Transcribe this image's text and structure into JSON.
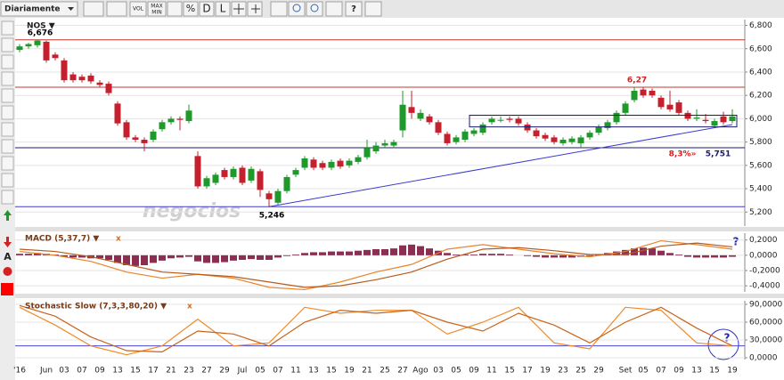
{
  "toolbar": {
    "period": "Diariamente",
    "vol": "VOL",
    "max": "MAX",
    "min": "MIN",
    "percent": "%",
    "d": "D",
    "l": "L",
    "help": "?"
  },
  "tools": {
    "text": "A"
  },
  "help": "?",
  "watermark": "negocios",
  "chart_data": [
    {
      "type": "candlestick",
      "title": "NOS ▼",
      "categories": [
        "'16",
        null,
        null,
        "Jun",
        null,
        "03",
        null,
        "07",
        null,
        "09",
        null,
        "13",
        null,
        "15",
        null,
        "17",
        null,
        "21",
        null,
        "23",
        null,
        "27",
        null,
        "29",
        null,
        "Jul",
        null,
        "05",
        null,
        "07",
        null,
        "11",
        null,
        "13",
        null,
        "15",
        null,
        "19",
        null,
        "21",
        null,
        "25",
        null,
        "27",
        null,
        "Ago",
        null,
        "03",
        null,
        "05",
        null,
        "09",
        null,
        "11",
        null,
        "15",
        null,
        "17",
        null,
        "19",
        null,
        "23",
        null,
        "25",
        null,
        "29",
        null,
        null,
        "Set",
        null,
        "05",
        null,
        "07",
        null,
        "09",
        null,
        "13",
        null,
        "15",
        null,
        "19"
      ],
      "open": [
        6.59,
        6.62,
        6.63,
        6.66,
        6.55,
        6.5,
        6.38,
        6.36,
        6.37,
        6.31,
        6.3,
        6.13,
        5.97,
        5.84,
        5.82,
        5.82,
        5.91,
        5.97,
        6.0,
        5.98,
        5.68,
        5.42,
        5.45,
        5.56,
        5.5,
        5.58,
        5.47,
        5.55,
        5.36,
        5.28,
        5.38,
        5.52,
        5.58,
        5.65,
        5.62,
        5.58,
        5.64,
        5.6,
        5.63,
        5.67,
        5.72,
        5.77,
        5.77,
        5.9,
        6.1,
        6.0,
        6.02,
        5.97,
        5.87,
        5.8,
        5.82,
        5.87,
        5.88,
        5.97,
        5.99,
        6.0,
        6.0,
        5.95,
        5.9,
        5.86,
        5.84,
        5.79,
        5.8,
        5.79,
        5.84,
        5.88,
        5.92,
        5.97,
        6.05,
        6.16,
        6.25,
        6.24,
        6.18,
        6.12,
        6.14,
        6.05,
        6.0,
        5.99,
        5.94,
        6.02,
        5.98
      ],
      "high": [
        6.64,
        6.65,
        6.676,
        6.67,
        6.57,
        6.52,
        6.4,
        6.38,
        6.39,
        6.33,
        6.32,
        6.15,
        5.99,
        5.86,
        5.84,
        5.91,
        5.99,
        6.02,
        6.02,
        6.12,
        5.72,
        5.51,
        5.54,
        5.58,
        5.59,
        5.6,
        5.59,
        5.57,
        5.38,
        5.4,
        5.52,
        5.58,
        5.68,
        5.67,
        5.64,
        5.65,
        5.66,
        5.66,
        5.69,
        5.82,
        5.8,
        5.82,
        5.82,
        6.24,
        6.24,
        6.08,
        6.04,
        5.99,
        5.89,
        5.86,
        5.91,
        5.92,
        5.97,
        6.02,
        6.02,
        6.02,
        6.02,
        5.97,
        5.92,
        5.88,
        5.86,
        5.84,
        5.85,
        5.86,
        5.9,
        5.95,
        5.99,
        6.07,
        6.15,
        6.27,
        6.27,
        6.26,
        6.2,
        6.24,
        6.16,
        6.07,
        6.08,
        6.04,
        6.0,
        6.06,
        6.08
      ],
      "low": [
        6.57,
        6.6,
        6.61,
        6.48,
        6.5,
        6.31,
        6.31,
        6.31,
        6.3,
        6.27,
        6.2,
        5.94,
        5.82,
        5.8,
        5.72,
        5.8,
        5.89,
        5.95,
        5.9,
        5.96,
        5.4,
        5.4,
        5.43,
        5.48,
        5.48,
        5.43,
        5.45,
        5.33,
        5.246,
        5.26,
        5.36,
        5.5,
        5.56,
        5.56,
        5.56,
        5.56,
        5.57,
        5.58,
        5.61,
        5.65,
        5.7,
        5.75,
        5.75,
        5.84,
        6.0,
        5.98,
        5.95,
        5.86,
        5.77,
        5.78,
        5.8,
        5.85,
        5.86,
        5.95,
        5.97,
        5.97,
        5.94,
        5.88,
        5.83,
        5.81,
        5.78,
        5.77,
        5.78,
        5.75,
        5.82,
        5.86,
        5.9,
        5.95,
        6.03,
        6.14,
        6.18,
        6.18,
        6.08,
        6.06,
        6.03,
        5.98,
        5.98,
        5.96,
        5.92,
        5.95,
        5.96
      ],
      "close": [
        6.62,
        6.64,
        6.67,
        6.5,
        6.52,
        6.33,
        6.33,
        6.33,
        6.32,
        6.29,
        6.22,
        5.96,
        5.84,
        5.82,
        5.79,
        5.89,
        5.97,
        6.0,
        5.99,
        6.07,
        5.42,
        5.49,
        5.52,
        5.5,
        5.57,
        5.45,
        5.57,
        5.39,
        5.31,
        5.38,
        5.5,
        5.56,
        5.66,
        5.58,
        5.58,
        5.63,
        5.59,
        5.64,
        5.67,
        5.75,
        5.77,
        5.79,
        5.8,
        6.12,
        6.05,
        6.05,
        5.97,
        5.88,
        5.79,
        5.84,
        5.89,
        5.9,
        5.95,
        6.0,
        5.99,
        5.99,
        5.96,
        5.9,
        5.85,
        5.83,
        5.8,
        5.82,
        5.83,
        5.84,
        5.88,
        5.93,
        5.97,
        6.05,
        6.13,
        6.24,
        6.2,
        6.2,
        6.1,
        6.08,
        6.05,
        6.0,
        6.01,
        5.98,
        5.98,
        5.97,
        6.02
      ],
      "up_color": "#1f9a2a",
      "down_color": "#c4202e",
      "ylim": [
        5.08,
        6.85
      ],
      "yticks": [
        {
          "value": 5.2,
          "label": "5,200"
        },
        {
          "value": 5.4,
          "label": "5,400"
        },
        {
          "value": 5.6,
          "label": "5,600"
        },
        {
          "value": 5.8,
          "label": "5,800"
        },
        {
          "value": 6.0,
          "label": "6,000"
        },
        {
          "value": 6.2,
          "label": "6,200"
        },
        {
          "value": 6.4,
          "label": "6,400"
        },
        {
          "value": 6.6,
          "label": "6,600"
        },
        {
          "value": 6.8,
          "label": "6,800"
        }
      ],
      "grid": true,
      "levels": [
        {
          "value": 6.676,
          "color": "#c0392b"
        },
        {
          "value": 6.27,
          "color": "#c0392b"
        },
        {
          "value": 5.751,
          "color": "#1a1a6e",
          "label": "5,751"
        },
        {
          "value": 5.246,
          "color": "#3b3bd0"
        }
      ],
      "distance_label": "8,3%»",
      "annotations": [
        {
          "label": "6,676",
          "value": 6.676,
          "at": "high",
          "color": "#000000"
        },
        {
          "label": "5,246",
          "value": 5.246,
          "at": "low",
          "color": "#000000"
        },
        {
          "label": "6,27",
          "value": 6.27,
          "at": "high",
          "color": "#d42020"
        }
      ],
      "trendline": {
        "x": [
          28,
          80
        ],
        "y": [
          5.246,
          5.95
        ],
        "color": "#3b3bd0"
      },
      "box": {
        "x": [
          51,
          81
        ],
        "y": [
          5.93,
          6.03
        ],
        "color": "#1a1a6e"
      }
    },
    {
      "type": "combo",
      "title": "MACD (5,37,7) ▼",
      "close": "x",
      "ylim": [
        -0.48,
        0.29
      ],
      "yticks": [
        {
          "value": -0.4,
          "label": "-0,4000"
        },
        {
          "value": -0.2,
          "label": "-0,2000"
        },
        {
          "value": 0,
          "label": "0,0000"
        },
        {
          "value": 0.2,
          "label": "0,2000"
        }
      ],
      "series": [
        {
          "kind": "bar",
          "color": "#8c2e52",
          "values": [
            0.02,
            0.02,
            0.03,
            0.02,
            0.01,
            -0.02,
            -0.03,
            -0.03,
            -0.04,
            -0.04,
            -0.06,
            -0.1,
            -0.13,
            -0.14,
            -0.13,
            -0.1,
            -0.07,
            -0.04,
            -0.03,
            -0.02,
            -0.08,
            -0.1,
            -0.1,
            -0.09,
            -0.07,
            -0.06,
            -0.05,
            -0.06,
            -0.06,
            -0.03,
            -0.01,
            0.01,
            0.03,
            0.04,
            0.04,
            0.05,
            0.05,
            0.05,
            0.06,
            0.07,
            0.08,
            0.08,
            0.09,
            0.13,
            0.14,
            0.12,
            0.09,
            0.06,
            0.03,
            0.01,
            0.01,
            0.01,
            0.02,
            0.02,
            0.02,
            0.01,
            0.0,
            -0.01,
            -0.02,
            -0.03,
            -0.03,
            -0.03,
            -0.03,
            -0.02,
            -0.01,
            0.01,
            0.03,
            0.05,
            0.07,
            0.09,
            0.1,
            0.09,
            0.06,
            0.03,
            0.01,
            -0.02,
            -0.03,
            -0.03,
            -0.03,
            -0.03,
            -0.02
          ]
        },
        {
          "kind": "line",
          "color": "#e8842a",
          "x": [
            0,
            4,
            8,
            12,
            16,
            20,
            24,
            28,
            32,
            36,
            40,
            44,
            48,
            52,
            56,
            60,
            64,
            68,
            72,
            76,
            80
          ],
          "values": [
            0.05,
            0.0,
            -0.08,
            -0.22,
            -0.3,
            -0.25,
            -0.3,
            -0.42,
            -0.45,
            -0.35,
            -0.22,
            -0.12,
            0.08,
            0.14,
            0.08,
            0.02,
            -0.02,
            0.05,
            0.19,
            0.14,
            0.08
          ]
        },
        {
          "kind": "line",
          "color": "#b85a1e",
          "x": [
            0,
            4,
            8,
            12,
            16,
            20,
            24,
            28,
            32,
            36,
            40,
            44,
            48,
            52,
            56,
            60,
            64,
            68,
            72,
            76,
            80
          ],
          "values": [
            0.08,
            0.05,
            -0.02,
            -0.12,
            -0.22,
            -0.25,
            -0.28,
            -0.35,
            -0.42,
            -0.4,
            -0.32,
            -0.22,
            -0.05,
            0.08,
            0.1,
            0.06,
            0.01,
            0.01,
            0.12,
            0.16,
            0.11
          ]
        }
      ]
    },
    {
      "type": "line",
      "title": "Stochastic Slow (7,3,3,80,20) ▼",
      "close": "x",
      "ylim": [
        -3,
        96
      ],
      "yticks": [
        {
          "value": 0,
          "label": "0,0000"
        },
        {
          "value": 30,
          "label": "30,0000"
        },
        {
          "value": 60,
          "label": "60,0000"
        },
        {
          "value": 90,
          "label": "90,0000"
        }
      ],
      "levels": [
        {
          "value": 20,
          "color": "#4a4ad8"
        }
      ],
      "series": [
        {
          "color": "#f08a2a",
          "x": [
            0,
            4,
            8,
            12,
            16,
            20,
            24,
            28,
            32,
            36,
            40,
            44,
            48,
            52,
            56,
            60,
            64,
            68,
            72,
            76,
            80
          ],
          "values": [
            85,
            55,
            20,
            5,
            20,
            65,
            20,
            25,
            85,
            75,
            80,
            80,
            40,
            60,
            85,
            25,
            15,
            85,
            80,
            25,
            20
          ]
        },
        {
          "color": "#c8641a",
          "x": [
            0,
            4,
            8,
            12,
            16,
            20,
            24,
            28,
            32,
            36,
            40,
            44,
            48,
            52,
            56,
            60,
            64,
            68,
            72,
            76,
            80
          ],
          "values": [
            88,
            70,
            35,
            12,
            10,
            45,
            40,
            20,
            60,
            80,
            75,
            80,
            60,
            45,
            75,
            55,
            25,
            60,
            85,
            50,
            20
          ]
        }
      ]
    }
  ]
}
